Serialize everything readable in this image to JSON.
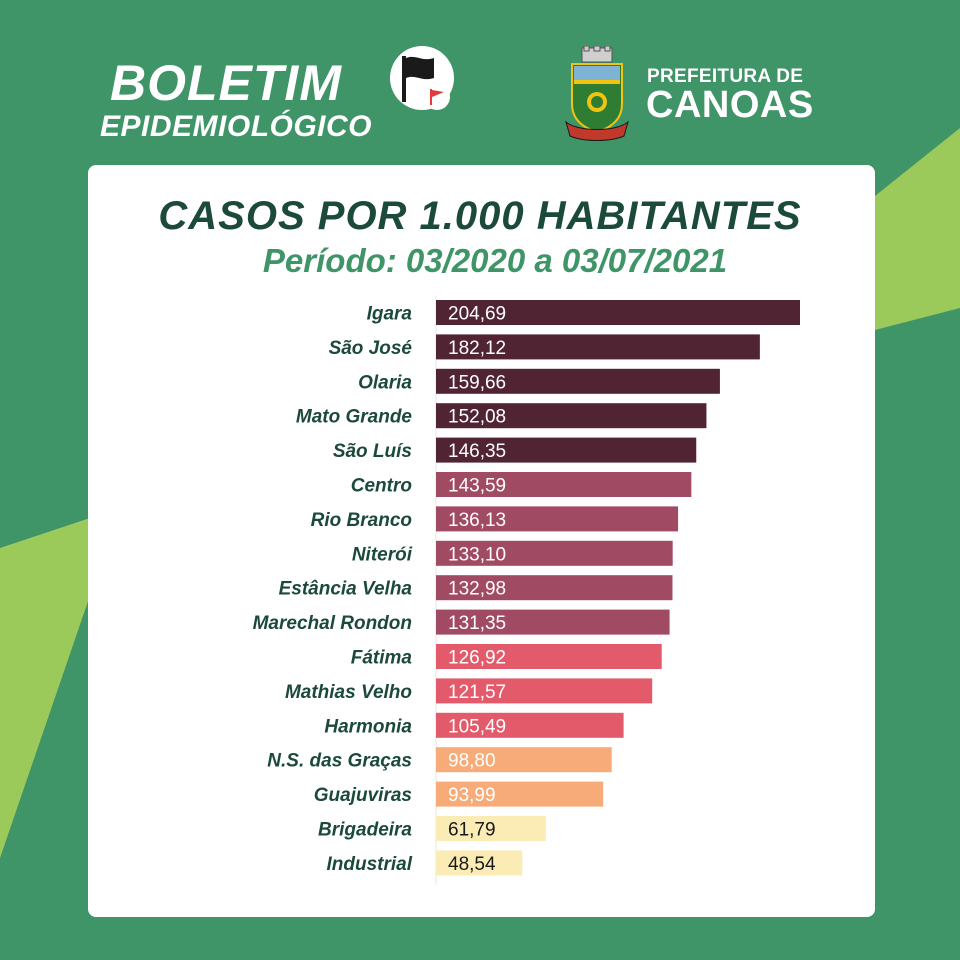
{
  "header": {
    "title_line1": "BOLETIM",
    "title_line2": "EPIDEMIOLÓGICO",
    "org_line1": "PREFEITURA DE",
    "org_line2": "CANOAS"
  },
  "icons": {
    "flag": "black-flag-icon",
    "small_flag": "red-flag-icon",
    "crest": "canoas-coat-of-arms-icon"
  },
  "colors": {
    "background": "#3f9468",
    "accent_light": "#9bc95a",
    "title": "#1c4a3a",
    "subtitle": "#3f9468",
    "tier_dark": "#512434",
    "tier_mauve": "#a14a64",
    "tier_coral": "#e35a6b",
    "tier_peach": "#f6ab78",
    "tier_cream": "#fbecb6"
  },
  "chart_data": {
    "type": "bar",
    "orientation": "horizontal",
    "title": "CASOS POR 1.000 HABITANTES",
    "subtitle": "Período: 03/2020 a 03/07/2021",
    "categories": [
      "Igara",
      "São José",
      "Olaria",
      "Mato Grande",
      "São Luís",
      "Centro",
      "Rio Branco",
      "Niterói",
      "Estância Velha",
      "Marechal Rondon",
      "Fátima",
      "Mathias Velho",
      "Harmonia",
      "N.S. das Graças",
      "Guajuviras",
      "Brigadeira",
      "Industrial"
    ],
    "values": [
      204.69,
      182.12,
      159.66,
      152.08,
      146.35,
      143.59,
      136.13,
      133.1,
      132.98,
      131.35,
      126.92,
      121.57,
      105.49,
      98.8,
      93.99,
      61.79,
      48.54
    ],
    "value_labels": [
      "204,69",
      "182,12",
      "159,66",
      "152,08",
      "146,35",
      "143,59",
      "136,13",
      "133,10",
      "132,98",
      "131,35",
      "126,92",
      "121,57",
      "105,49",
      "98,80",
      "93,99",
      "61,79",
      "48,54"
    ],
    "bar_colors": [
      "#512434",
      "#512434",
      "#512434",
      "#512434",
      "#512434",
      "#a14a64",
      "#a14a64",
      "#a14a64",
      "#a14a64",
      "#a14a64",
      "#e35a6b",
      "#e35a6b",
      "#e35a6b",
      "#f6ab78",
      "#f6ab78",
      "#fbecb6",
      "#fbecb6"
    ],
    "label_colors": [
      "#ffffff",
      "#ffffff",
      "#ffffff",
      "#ffffff",
      "#ffffff",
      "#ffffff",
      "#ffffff",
      "#ffffff",
      "#ffffff",
      "#ffffff",
      "#ffffff",
      "#ffffff",
      "#ffffff",
      "#ffffff",
      "#ffffff",
      "#1a1a1a",
      "#1a1a1a"
    ],
    "xlim": [
      0,
      210
    ],
    "grid": false,
    "legend": "none"
  }
}
